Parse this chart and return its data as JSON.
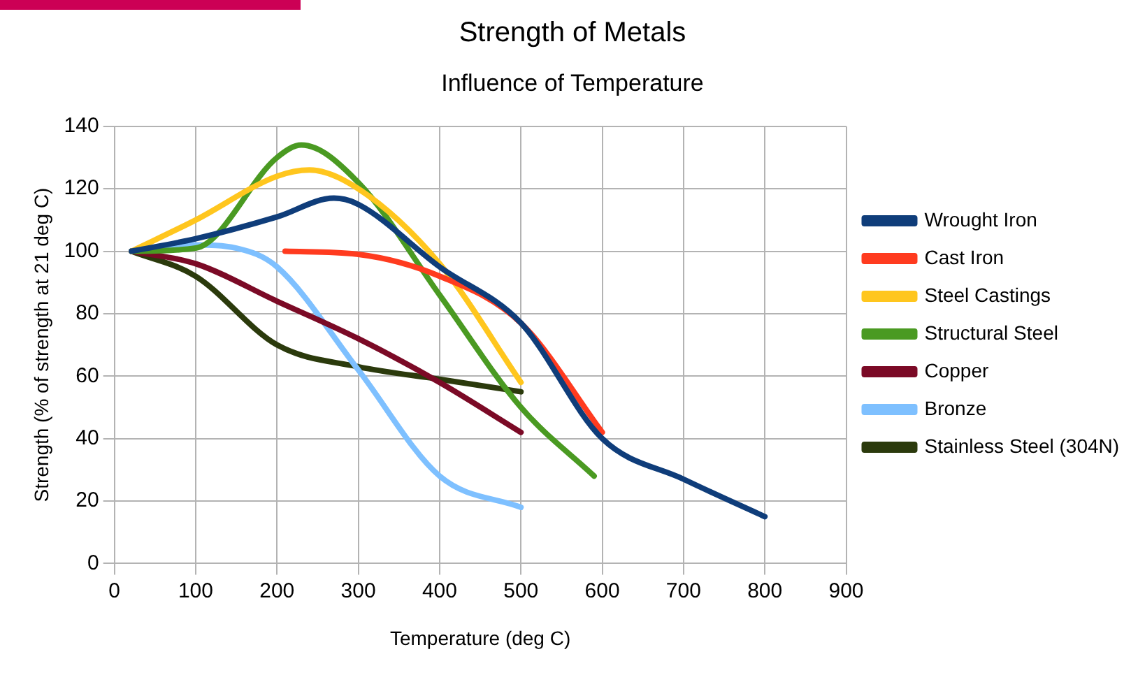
{
  "chart_data": {
    "type": "line",
    "title": "Strength of Metals",
    "subtitle": "Influence of Temperature",
    "xlabel": "Temperature (deg C)",
    "ylabel": "Strength (% of strength at 21 deg C)",
    "xlim": [
      0,
      900
    ],
    "xticks": [
      0,
      100,
      200,
      300,
      400,
      500,
      600,
      700,
      800,
      900
    ],
    "ylim": [
      0,
      140
    ],
    "yticks": [
      0,
      20,
      40,
      60,
      80,
      100,
      120,
      140
    ],
    "grid": true,
    "legend": "right",
    "marker": "none",
    "line_style": "solid",
    "series": [
      {
        "name": "Wrought Iron",
        "color": "#0f3d7a",
        "x": [
          21,
          100,
          200,
          270,
          300,
          400,
          500,
          600,
          700,
          800
        ],
        "values": [
          100,
          104,
          111,
          117,
          115,
          95,
          77,
          40,
          27,
          15
        ]
      },
      {
        "name": "Cast Iron",
        "color": "#ff3b1f",
        "x": [
          210,
          300,
          400,
          500,
          600
        ],
        "values": [
          100,
          99,
          92,
          77,
          42
        ]
      },
      {
        "name": "Steel Castings",
        "color": "#ffc61e",
        "x": [
          21,
          100,
          200,
          240,
          300,
          400,
          500
        ],
        "values": [
          100,
          110,
          124,
          126,
          120,
          96,
          58
        ]
      },
      {
        "name": "Structural Steel",
        "color": "#4a9a22",
        "x": [
          21,
          100,
          200,
          230,
          300,
          400,
          500,
          590
        ],
        "values": [
          100,
          101,
          130,
          134,
          122,
          86,
          50,
          28
        ]
      },
      {
        "name": "Copper",
        "color": "#7b0a26",
        "x": [
          21,
          100,
          200,
          300,
          400,
          500
        ],
        "values": [
          100,
          96,
          84,
          72,
          58,
          42
        ]
      },
      {
        "name": "Bronze",
        "color": "#7ec0ff",
        "x": [
          21,
          100,
          150,
          200,
          300,
          400,
          500
        ],
        "values": [
          100,
          102,
          101,
          95,
          62,
          28,
          18
        ]
      },
      {
        "name": "Stainless Steel (304N)",
        "color": "#2b3a0c",
        "x": [
          21,
          100,
          200,
          300,
          400,
          500
        ],
        "values": [
          100,
          92,
          70,
          63,
          59,
          55
        ]
      }
    ]
  }
}
